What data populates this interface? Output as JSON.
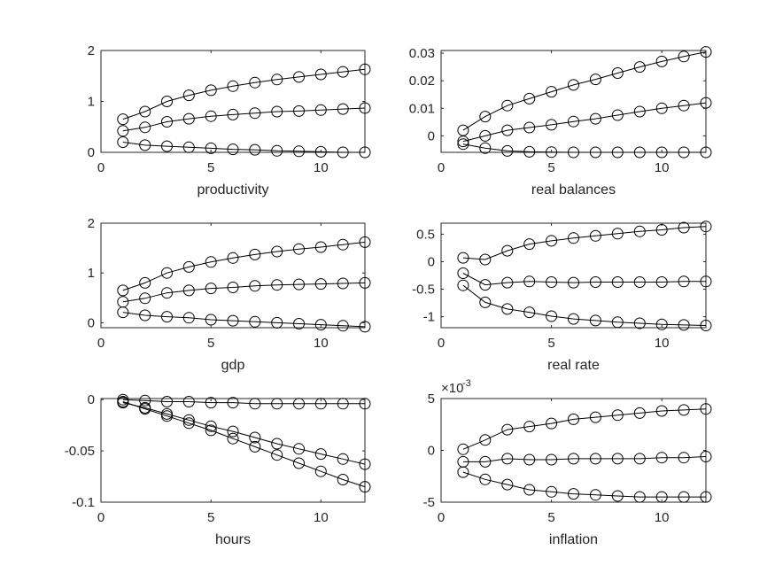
{
  "colors": {
    "axes": "#262626",
    "line": "#000000",
    "background": "#ffffff"
  },
  "chart_data": [
    {
      "type": "line",
      "xlabel": "productivity",
      "xlim": [
        0,
        12
      ],
      "ylim": [
        0,
        2
      ],
      "x_ticks": [
        0,
        5,
        10
      ],
      "x_tick_labels": [
        "0",
        "5",
        "10"
      ],
      "y_ticks": [
        0,
        1,
        2
      ],
      "y_tick_labels": [
        "0",
        "1",
        "2"
      ],
      "exponent_label": "",
      "grid": false,
      "marker": "circle-open",
      "x": [
        1,
        2,
        3,
        4,
        5,
        6,
        7,
        8,
        9,
        10,
        11,
        12
      ],
      "series": [
        {
          "values": [
            0.65,
            0.8,
            1.0,
            1.12,
            1.22,
            1.3,
            1.37,
            1.43,
            1.48,
            1.53,
            1.58,
            1.63
          ]
        },
        {
          "values": [
            0.42,
            0.49,
            0.6,
            0.66,
            0.71,
            0.74,
            0.77,
            0.8,
            0.81,
            0.83,
            0.85,
            0.87
          ]
        },
        {
          "values": [
            0.2,
            0.14,
            0.12,
            0.1,
            0.08,
            0.06,
            0.05,
            0.03,
            0.02,
            0.01,
            0.0,
            0.0
          ]
        }
      ]
    },
    {
      "type": "line",
      "xlabel": "real balances",
      "xlim": [
        0,
        12
      ],
      "ylim": [
        -0.006,
        0.031
      ],
      "x_ticks": [
        0,
        5,
        10
      ],
      "x_tick_labels": [
        "0",
        "5",
        "10"
      ],
      "y_ticks": [
        0,
        0.01,
        0.02,
        0.03
      ],
      "y_tick_labels": [
        "0",
        "0.01",
        "0.02",
        "0.03"
      ],
      "exponent_label": "",
      "grid": false,
      "marker": "circle-open",
      "x": [
        1,
        2,
        3,
        4,
        5,
        6,
        7,
        8,
        9,
        10,
        11,
        12
      ],
      "series": [
        {
          "values": [
            0.002,
            0.007,
            0.011,
            0.0135,
            0.016,
            0.0185,
            0.0205,
            0.0228,
            0.025,
            0.027,
            0.0288,
            0.0305
          ]
        },
        {
          "values": [
            -0.002,
            0.0,
            0.002,
            0.003,
            0.004,
            0.0052,
            0.0062,
            0.0075,
            0.0088,
            0.01,
            0.011,
            0.012
          ]
        },
        {
          "values": [
            -0.003,
            -0.0045,
            -0.0055,
            -0.0058,
            -0.0059,
            -0.006,
            -0.006,
            -0.006,
            -0.006,
            -0.006,
            -0.006,
            -0.006
          ]
        }
      ]
    },
    {
      "type": "line",
      "xlabel": "gdp",
      "xlim": [
        0,
        12
      ],
      "ylim": [
        -0.1,
        2
      ],
      "x_ticks": [
        0,
        5,
        10
      ],
      "x_tick_labels": [
        "0",
        "5",
        "10"
      ],
      "y_ticks": [
        0,
        1,
        2
      ],
      "y_tick_labels": [
        "0",
        "1",
        "2"
      ],
      "exponent_label": "",
      "grid": false,
      "marker": "circle-open",
      "x": [
        1,
        2,
        3,
        4,
        5,
        6,
        7,
        8,
        9,
        10,
        11,
        12
      ],
      "series": [
        {
          "values": [
            0.65,
            0.8,
            1.0,
            1.12,
            1.22,
            1.3,
            1.37,
            1.43,
            1.48,
            1.52,
            1.57,
            1.62
          ]
        },
        {
          "values": [
            0.42,
            0.49,
            0.6,
            0.65,
            0.69,
            0.71,
            0.74,
            0.76,
            0.77,
            0.78,
            0.79,
            0.8
          ]
        },
        {
          "values": [
            0.21,
            0.15,
            0.12,
            0.1,
            0.06,
            0.04,
            0.02,
            0.0,
            -0.02,
            -0.04,
            -0.06,
            -0.08
          ]
        }
      ]
    },
    {
      "type": "line",
      "xlabel": "real rate",
      "xlim": [
        0,
        12
      ],
      "ylim": [
        -1.2,
        0.7
      ],
      "x_ticks": [
        0,
        5,
        10
      ],
      "x_tick_labels": [
        "0",
        "5",
        "10"
      ],
      "y_ticks": [
        -1,
        -0.5,
        0,
        0.5
      ],
      "y_tick_labels": [
        "-1",
        "-0.5",
        "0",
        "0.5"
      ],
      "exponent_label": "",
      "grid": false,
      "marker": "circle-open",
      "x": [
        1,
        2,
        3,
        4,
        5,
        6,
        7,
        8,
        9,
        10,
        11,
        12
      ],
      "series": [
        {
          "values": [
            0.07,
            0.04,
            0.2,
            0.32,
            0.38,
            0.43,
            0.47,
            0.51,
            0.55,
            0.58,
            0.62,
            0.64
          ]
        },
        {
          "values": [
            -0.21,
            -0.42,
            -0.38,
            -0.36,
            -0.37,
            -0.38,
            -0.37,
            -0.37,
            -0.37,
            -0.37,
            -0.36,
            -0.36
          ]
        },
        {
          "values": [
            -0.43,
            -0.74,
            -0.86,
            -0.92,
            -0.99,
            -1.04,
            -1.07,
            -1.1,
            -1.12,
            -1.14,
            -1.15,
            -1.16
          ]
        }
      ]
    },
    {
      "type": "line",
      "xlabel": "hours",
      "xlim": [
        0,
        12
      ],
      "ylim": [
        -0.1,
        0.001
      ],
      "x_ticks": [
        0,
        5,
        10
      ],
      "x_tick_labels": [
        "0",
        "5",
        "10"
      ],
      "y_ticks": [
        -0.1,
        -0.05,
        0
      ],
      "y_tick_labels": [
        "-0.1",
        "-0.05",
        "0"
      ],
      "exponent_label": "",
      "grid": false,
      "marker": "circle-open",
      "x": [
        1,
        2,
        3,
        4,
        5,
        6,
        7,
        8,
        9,
        10,
        11,
        12
      ],
      "series": [
        {
          "values": [
            0.0,
            -0.001,
            -0.002,
            -0.002,
            -0.003,
            -0.003,
            -0.004,
            -0.004,
            -0.004,
            -0.004,
            -0.004,
            -0.004
          ]
        },
        {
          "values": [
            -0.003,
            -0.008,
            -0.014,
            -0.02,
            -0.026,
            -0.031,
            -0.037,
            -0.043,
            -0.048,
            -0.053,
            -0.058,
            -0.063
          ]
        },
        {
          "values": [
            -0.002,
            -0.009,
            -0.016,
            -0.023,
            -0.03,
            -0.038,
            -0.046,
            -0.054,
            -0.062,
            -0.07,
            -0.078,
            -0.085
          ]
        }
      ]
    },
    {
      "type": "line",
      "xlabel": "inflation",
      "xlim": [
        0,
        12
      ],
      "ylim": [
        -0.005,
        0.005
      ],
      "x_ticks": [
        0,
        5,
        10
      ],
      "x_tick_labels": [
        "0",
        "5",
        "10"
      ],
      "y_ticks": [
        -0.005,
        0,
        0.005
      ],
      "y_tick_labels": [
        "-5",
        "0",
        "5"
      ],
      "exponent_label": "-3",
      "grid": false,
      "marker": "circle-open",
      "x": [
        1,
        2,
        3,
        4,
        5,
        6,
        7,
        8,
        9,
        10,
        11,
        12
      ],
      "series": [
        {
          "values": [
            0.0001,
            0.001,
            0.002,
            0.0023,
            0.0026,
            0.003,
            0.0032,
            0.0034,
            0.0036,
            0.0038,
            0.0039,
            0.004
          ]
        },
        {
          "values": [
            -0.0011,
            -0.0011,
            -0.0008,
            -0.0009,
            -0.0009,
            -0.0008,
            -0.0008,
            -0.0008,
            -0.0008,
            -0.0007,
            -0.0007,
            -0.0006
          ]
        },
        {
          "values": [
            -0.0021,
            -0.0028,
            -0.0033,
            -0.0038,
            -0.004,
            -0.0042,
            -0.0043,
            -0.0044,
            -0.0045,
            -0.0045,
            -0.0045,
            -0.0045
          ]
        }
      ]
    }
  ]
}
